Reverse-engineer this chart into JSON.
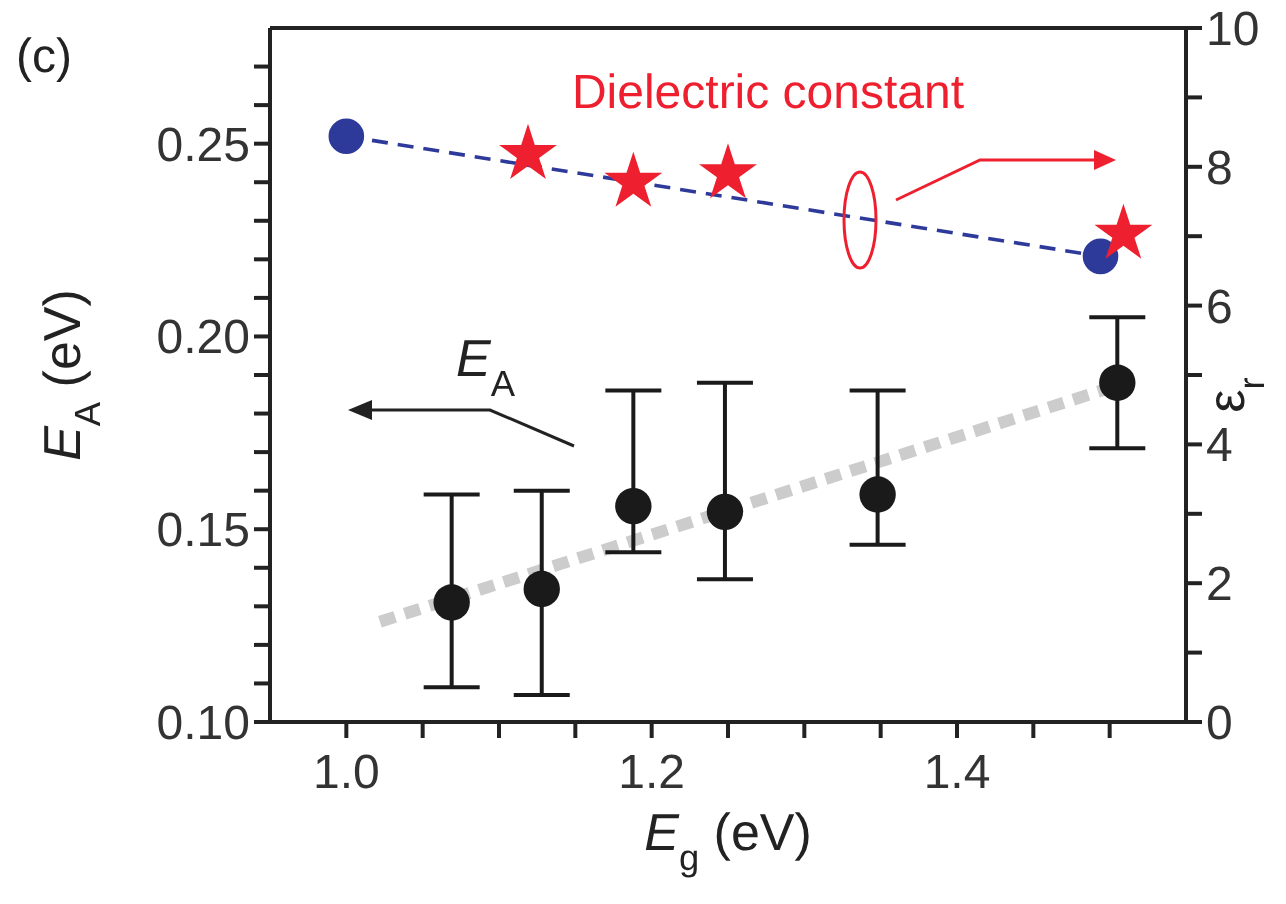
{
  "chart_data": {
    "type": "scatter",
    "title": "(c)",
    "xlabel": "E$_{g}$ (eV)",
    "ylabel": "E$_{A}$ (eV)",
    "y2label": "ε$_{r}$",
    "annotations": [
      "Dielectric constant",
      "E$_{A}$"
    ],
    "xlim": [
      0.95,
      1.55
    ],
    "xticks": [
      {
        "value": 1.0,
        "label": "1.0"
      },
      {
        "value": 1.05,
        "label": null
      },
      {
        "value": 1.1,
        "label": null
      },
      {
        "value": 1.15,
        "label": null
      },
      {
        "value": 1.2,
        "label": "1.2"
      },
      {
        "value": 1.25,
        "label": null
      },
      {
        "value": 1.3,
        "label": null
      },
      {
        "value": 1.35,
        "label": null
      },
      {
        "value": 1.4,
        "label": "1.4"
      },
      {
        "value": 1.45,
        "label": null
      },
      {
        "value": 1.5,
        "label": null
      }
    ],
    "ylim": [
      0.1,
      0.28
    ],
    "yticks": [
      {
        "value": 0.1,
        "label": "0.10"
      },
      {
        "value": 0.11,
        "label": null
      },
      {
        "value": 0.12,
        "label": null
      },
      {
        "value": 0.13,
        "label": null
      },
      {
        "value": 0.14,
        "label": null
      },
      {
        "value": 0.15,
        "label": "0.15"
      },
      {
        "value": 0.16,
        "label": null
      },
      {
        "value": 0.17,
        "label": null
      },
      {
        "value": 0.18,
        "label": null
      },
      {
        "value": 0.19,
        "label": null
      },
      {
        "value": 0.2,
        "label": "0.20"
      },
      {
        "value": 0.21,
        "label": null
      },
      {
        "value": 0.22,
        "label": null
      },
      {
        "value": 0.23,
        "label": null
      },
      {
        "value": 0.24,
        "label": null
      },
      {
        "value": 0.25,
        "label": "0.25"
      },
      {
        "value": 0.26,
        "label": null
      },
      {
        "value": 0.27,
        "label": null
      }
    ],
    "y2lim": [
      0,
      10
    ],
    "y2ticks": [
      0,
      {
        "value": 1,
        "label": null
      },
      2,
      {
        "value": 3,
        "label": null
      },
      4,
      {
        "value": 5,
        "label": null
      },
      6,
      {
        "value": 7,
        "label": null
      },
      8,
      {
        "value": 9,
        "label": null
      },
      10
    ],
    "series": [
      {
        "type": "line",
        "color": "#cccccc",
        "line_style": "dashed",
        "marker": "none",
        "x": [
          1.022,
          1.503
        ],
        "values": [
          0.126,
          0.187
        ]
      },
      {
        "color": "#1a1a1a",
        "marker": "circle",
        "x": [
          1.069,
          1.128,
          1.188,
          1.248,
          1.348,
          1.505
        ],
        "values": [
          0.131,
          0.1345,
          0.156,
          0.1545,
          0.159,
          0.188
        ],
        "errors": [
          [
            0.109,
            0.159
          ],
          [
            0.107,
            0.16
          ],
          [
            0.144,
            0.186
          ],
          [
            0.137,
            0.188
          ],
          [
            0.146,
            0.186
          ],
          [
            0.171,
            0.205
          ]
        ]
      },
      {
        "type": "line",
        "axis": "y2",
        "color": "#2e3a9a",
        "line_style": "dashed",
        "marker": "circle",
        "x": [
          1.0,
          1.494
        ],
        "values": [
          8.44,
          6.71
        ]
      },
      {
        "axis": "y2",
        "color": "#ee2030",
        "marker": "star",
        "x": [
          1.119,
          1.188,
          1.25,
          1.509
        ],
        "values": [
          8.18,
          7.78,
          7.9,
          7.03
        ]
      }
    ]
  }
}
